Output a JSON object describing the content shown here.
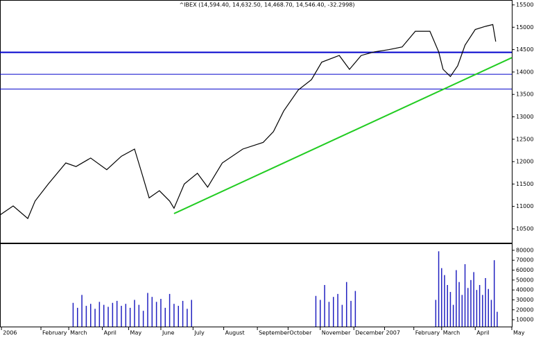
{
  "chart_data": {
    "type": "line",
    "title": "^IBEX (14,594.40, 14,632.50, 14,468.70, 14,546.40, -32.2998)",
    "color": "#000000",
    "x": [
      0,
      9,
      19,
      24,
      33,
      45,
      52,
      62,
      73,
      83,
      92,
      97,
      102,
      109,
      116,
      119,
      126,
      135,
      142,
      152,
      166,
      180,
      187,
      194,
      204,
      213,
      220,
      232,
      239,
      247,
      256,
      266,
      275,
      284,
      294,
      300,
      303,
      308,
      313,
      318,
      325,
      332,
      337,
      339
    ],
    "values": [
      10810,
      11010,
      10730,
      11120,
      11500,
      11970,
      11890,
      12080,
      11820,
      12120,
      12280,
      11740,
      11190,
      11350,
      11120,
      10960,
      11500,
      11740,
      11430,
      11970,
      12280,
      12430,
      12670,
      13130,
      13600,
      13830,
      14220,
      14370,
      14060,
      14370,
      14450,
      14500,
      14560,
      14910,
      14910,
      14450,
      14060,
      13900,
      14140,
      14600,
      14950,
      15020,
      15060,
      14680
    ],
    "xlim": [
      0,
      350
    ],
    "xticks": [
      {
        "value": 1,
        "label": "2006"
      },
      {
        "value": 28,
        "label": "February"
      },
      {
        "value": 47,
        "label": "March"
      },
      {
        "value": 70,
        "label": "April"
      },
      {
        "value": 88,
        "label": "May"
      },
      {
        "value": 110,
        "label": "June"
      },
      {
        "value": 132,
        "label": "July"
      },
      {
        "value": 153,
        "label": "August"
      },
      {
        "value": 176,
        "label": "September"
      },
      {
        "value": 197,
        "label": "October"
      },
      {
        "value": 219,
        "label": "November"
      },
      {
        "value": 242,
        "label": "December"
      },
      {
        "value": 263,
        "label": "2007"
      },
      {
        "value": 283,
        "label": "February"
      },
      {
        "value": 302,
        "label": "March"
      },
      {
        "value": 325,
        "label": "April"
      },
      {
        "value": 350,
        "label": "May"
      }
    ],
    "ylim": [
      10190,
      15608
    ],
    "yticks": [
      10500,
      11000,
      11500,
      12000,
      12500,
      13000,
      13500,
      14000,
      14500,
      15000,
      15500
    ],
    "hlines": [
      {
        "value": 14440,
        "color": "#0000cc"
      },
      {
        "value": 13950,
        "color": "#0000cc"
      },
      {
        "value": 13620,
        "color": "#0000cc"
      }
    ],
    "trendline": {
      "x": [
        119,
        350
      ],
      "values": [
        10840,
        14320
      ],
      "color": "#22cc22"
    },
    "volume": {
      "color": "#2020c0",
      "x": [
        50,
        53,
        56,
        59,
        62,
        65,
        68,
        71,
        74,
        77,
        80,
        83,
        86,
        89,
        92,
        95,
        98,
        101,
        104,
        107,
        110,
        113,
        116,
        119,
        122,
        125,
        128,
        131,
        216,
        219,
        222,
        225,
        228,
        231,
        234,
        237,
        240,
        243,
        298,
        300,
        302,
        304,
        306,
        308,
        310,
        312,
        314,
        316,
        318,
        320,
        322,
        324,
        326,
        328,
        330,
        332,
        334,
        336,
        338,
        340
      ],
      "values": [
        27000,
        22000,
        35000,
        24000,
        26000,
        21000,
        28000,
        25000,
        23000,
        27000,
        29000,
        24000,
        26000,
        22000,
        30000,
        25000,
        19000,
        37000,
        33000,
        28000,
        31000,
        22000,
        36000,
        26000,
        24000,
        29000,
        21000,
        30000,
        34000,
        30000,
        45000,
        28000,
        33000,
        36000,
        25000,
        48000,
        29000,
        39000,
        30000,
        79000,
        62000,
        55000,
        45000,
        38000,
        25000,
        60000,
        48000,
        35000,
        66000,
        42000,
        50000,
        58000,
        40000,
        45000,
        35000,
        52000,
        41000,
        30000,
        70000,
        18000
      ],
      "ylim": [
        3070,
        86240
      ],
      "yticks": [
        10000,
        20000,
        30000,
        40000,
        50000,
        60000,
        70000,
        80000
      ]
    }
  }
}
